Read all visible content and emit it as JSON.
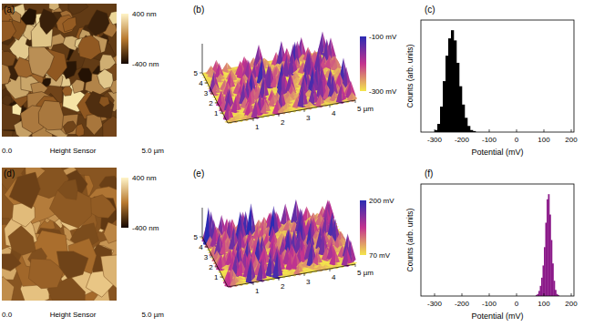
{
  "afm_images": [
    {
      "label": "(a)",
      "colorbar": {
        "range": [
          -400,
          400
        ],
        "ticks": [
          {
            "value": 400,
            "label": "400 nm"
          },
          {
            "value": -400,
            "label": "-400 nm"
          }
        ]
      },
      "scale_start": "0.0",
      "scale_title": "Height Sensor",
      "scale_end": "5.0 µm"
    },
    {
      "label": "(d)",
      "colorbar": {
        "range": [
          -400,
          400
        ],
        "ticks": [
          {
            "value": 400,
            "label": "400 nm"
          },
          {
            "value": -400,
            "label": "-400 nm"
          }
        ]
      },
      "scale_start": "0.0",
      "scale_title": "Height Sensor",
      "scale_end": "5.0 µm"
    }
  ],
  "surface_plots": [
    {
      "label": "(b)",
      "colorbar": {
        "range": [
          -300,
          -100
        ],
        "ticks": [
          {
            "value": -100,
            "label": "-100 mV"
          },
          {
            "value": -300,
            "label": "-300 mV"
          }
        ]
      },
      "axis_range": [
        0,
        5
      ],
      "depth_ticks": [
        1,
        2,
        3,
        4,
        5
      ],
      "x_ticks": [
        1,
        2,
        3,
        4,
        {
          "value": 5,
          "label": "5 µm"
        }
      ]
    },
    {
      "label": "(e)",
      "colorbar": {
        "range": [
          70,
          200
        ],
        "ticks": [
          {
            "value": 200,
            "label": "200 mV"
          },
          {
            "value": 70,
            "label": "70 mV"
          }
        ]
      },
      "axis_range": [
        0,
        5
      ],
      "depth_ticks": [
        1,
        2,
        3,
        4,
        5
      ],
      "x_ticks": [
        1,
        2,
        3,
        4,
        {
          "value": 5,
          "label": "5 µm"
        }
      ]
    }
  ],
  "chart_data": [
    {
      "type": "histogram",
      "title": "(c)",
      "x_label": "Potential (mV)",
      "y_label": "Counts (arb. units)",
      "bins": [
        -300,
        -290,
        -280,
        -270,
        -260,
        -250,
        -240,
        -230,
        -220,
        -210,
        -200,
        -190,
        -180,
        -170,
        -160,
        -150
      ],
      "values": [
        2,
        8,
        25,
        50,
        75,
        92,
        100,
        90,
        68,
        45,
        27,
        14,
        6,
        2,
        1
      ],
      "color": "#000000",
      "xlim": [
        -350,
        210
      ],
      "xticks": [
        -300,
        -200,
        -100,
        0,
        100,
        200
      ],
      "ylim": [
        0,
        110
      ],
      "tick_labels": "x",
      "grid": false
    },
    {
      "type": "histogram",
      "title": "(f)",
      "x_label": "Potential (mV)",
      "y_label": "Counts (arb. units)",
      "bins": [
        70,
        75,
        80,
        85,
        90,
        95,
        100,
        105,
        110,
        115,
        120,
        125,
        130,
        135,
        140,
        145,
        150,
        155,
        160
      ],
      "values": [
        1,
        2,
        5,
        10,
        18,
        30,
        48,
        72,
        95,
        100,
        80,
        55,
        32,
        15,
        6,
        2,
        1,
        0
      ],
      "color": "#8b1a89",
      "xlim": [
        -350,
        210
      ],
      "xticks": [
        -300,
        -200,
        -100,
        0,
        100,
        200
      ],
      "ylim": [
        0,
        110
      ],
      "tick_labels": "x",
      "grid": false
    }
  ]
}
